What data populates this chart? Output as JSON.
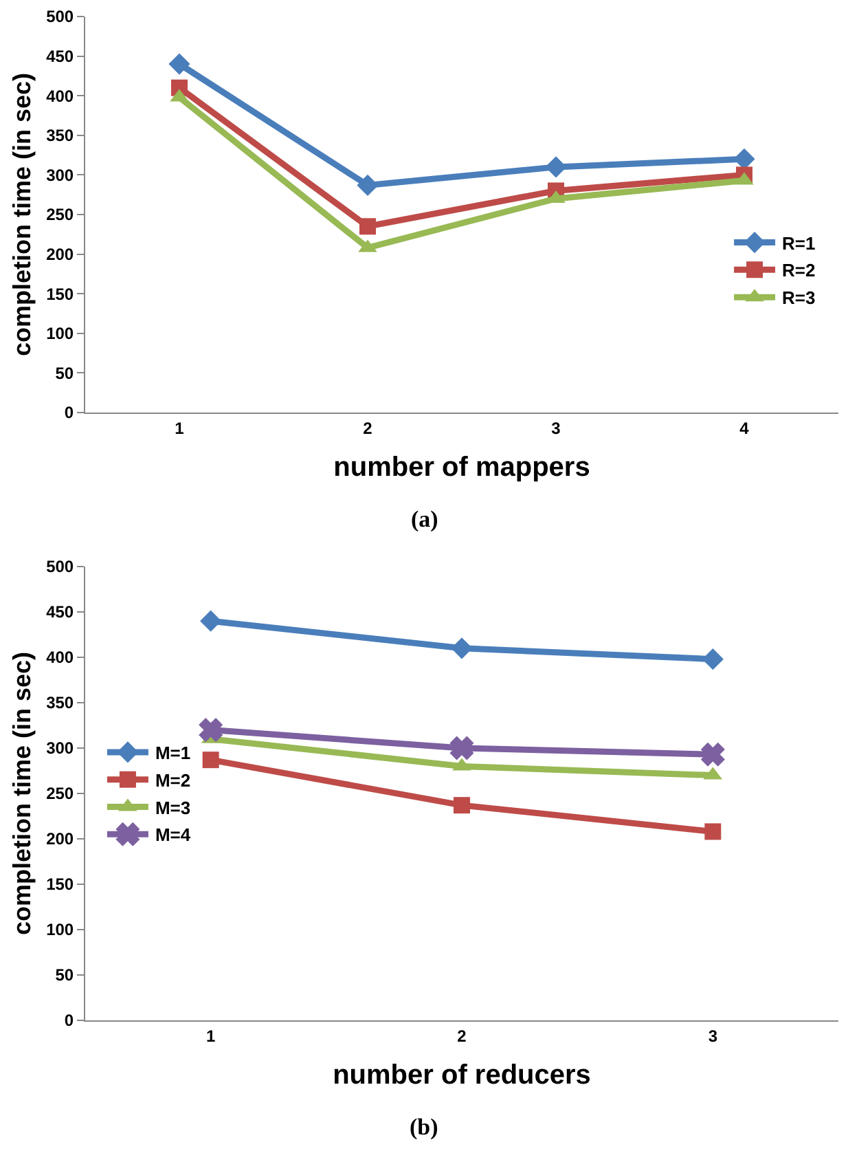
{
  "chart_data": [
    {
      "type": "line",
      "xlabel": "number of mappers",
      "ylabel": "completion time (in sec)",
      "categories": [
        "1",
        "2",
        "3",
        "4"
      ],
      "ylim": [
        0,
        500
      ],
      "yticks": [
        0,
        50,
        100,
        150,
        200,
        250,
        300,
        350,
        400,
        450,
        500
      ],
      "legend": "right",
      "annotations": [
        "(a)"
      ],
      "series": [
        {
          "name": "R=1",
          "color": "#4a7ebb",
          "marker": "diamond",
          "values": [
            440,
            287,
            310,
            320
          ]
        },
        {
          "name": "R=2",
          "color": "#be4b48",
          "marker": "square",
          "values": [
            410,
            235,
            280,
            300
          ]
        },
        {
          "name": "R=3",
          "color": "#98b954",
          "marker": "triangle",
          "values": [
            398,
            208,
            270,
            293
          ]
        }
      ]
    },
    {
      "type": "line",
      "xlabel": "number of reducers",
      "ylabel": "completion time (in sec)",
      "categories": [
        "1",
        "2",
        "3"
      ],
      "ylim": [
        0,
        500
      ],
      "yticks": [
        0,
        50,
        100,
        150,
        200,
        250,
        300,
        350,
        400,
        450,
        500
      ],
      "legend": "left",
      "annotations": [
        "(b)"
      ],
      "series": [
        {
          "name": "M=1",
          "color": "#4a7ebb",
          "marker": "diamond",
          "values": [
            440,
            410,
            398
          ]
        },
        {
          "name": "M=2",
          "color": "#be4b48",
          "marker": "square",
          "values": [
            287,
            237,
            208
          ]
        },
        {
          "name": "M=3",
          "color": "#98b954",
          "marker": "triangle",
          "values": [
            310,
            280,
            270
          ]
        },
        {
          "name": "M=4",
          "color": "#7d60a0",
          "marker": "cross",
          "values": [
            320,
            300,
            293
          ]
        }
      ]
    }
  ]
}
